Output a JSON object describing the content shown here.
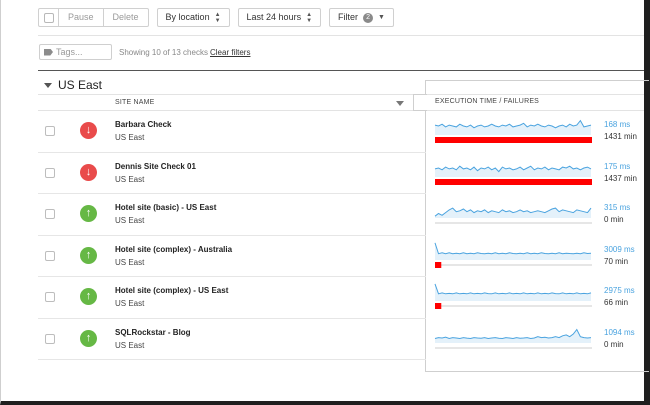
{
  "toolbar": {
    "pause_label": "Pause",
    "delete_label": "Delete",
    "location_label": "By location",
    "time_label": "Last 24 hours",
    "filter_label": "Filter",
    "filter_count": "2"
  },
  "filters": {
    "tags_placeholder": "Tags...",
    "showing_text": "Showing 10 of 13 checks",
    "clear_label": "Clear filters"
  },
  "group": {
    "title": "US East"
  },
  "columns": {
    "site": "SITE NAME",
    "exec": "EXECUTION TIME / FAILURES"
  },
  "colors": {
    "down": "#e94b4b",
    "up": "#66b845",
    "spark": "#4aa3df",
    "fail": "#ff0000"
  },
  "rows": [
    {
      "name": "Barbara Check",
      "region": "US East",
      "status": "down",
      "ms": "168 ms",
      "min": "1431 min",
      "spark": [
        0.55,
        0.5,
        0.6,
        0.45,
        0.55,
        0.5,
        0.45,
        0.6,
        0.5,
        0.45,
        0.55,
        0.4,
        0.5,
        0.55,
        0.45,
        0.5,
        0.6,
        0.5,
        0.45,
        0.55,
        0.5,
        0.6,
        0.45,
        0.5,
        0.55,
        0.65,
        0.45,
        0.55,
        0.5,
        0.6,
        0.5,
        0.45,
        0.55,
        0.5,
        0.4,
        0.5,
        0.55,
        0.45,
        0.6,
        0.5,
        0.55,
        0.8,
        0.45,
        0.5,
        0.55
      ],
      "failure": 1.0
    },
    {
      "name": "Dennis Site Check 01",
      "region": "US East",
      "status": "down",
      "ms": "175 ms",
      "min": "1437 min",
      "spark": [
        0.45,
        0.5,
        0.4,
        0.55,
        0.45,
        0.5,
        0.4,
        0.6,
        0.45,
        0.5,
        0.4,
        0.55,
        0.35,
        0.5,
        0.45,
        0.55,
        0.4,
        0.5,
        0.3,
        0.55,
        0.45,
        0.5,
        0.4,
        0.45,
        0.55,
        0.4,
        0.5,
        0.6,
        0.4,
        0.5,
        0.45,
        0.55,
        0.4,
        0.5,
        0.45,
        0.4,
        0.55,
        0.5,
        0.6,
        0.45,
        0.5,
        0.4,
        0.5,
        0.55,
        0.45
      ],
      "failure": 1.0
    },
    {
      "name": "Hotel site (basic) - US East",
      "region": "US East",
      "status": "up",
      "ms": "315 ms",
      "min": "0 min",
      "spark": [
        0.1,
        0.25,
        0.15,
        0.3,
        0.45,
        0.55,
        0.35,
        0.4,
        0.5,
        0.35,
        0.45,
        0.3,
        0.4,
        0.35,
        0.45,
        0.3,
        0.4,
        0.35,
        0.3,
        0.45,
        0.35,
        0.4,
        0.3,
        0.35,
        0.45,
        0.35,
        0.4,
        0.3,
        0.35,
        0.4,
        0.35,
        0.3,
        0.4,
        0.5,
        0.55,
        0.35,
        0.45,
        0.4,
        0.35,
        0.3,
        0.45,
        0.4,
        0.35,
        0.3,
        0.55
      ],
      "failure": 0.0
    },
    {
      "name": "Hotel site (complex) - Australia",
      "region": "US East",
      "status": "up",
      "ms": "3009 ms",
      "min": "70 min",
      "spark": [
        0.95,
        0.35,
        0.4,
        0.35,
        0.4,
        0.35,
        0.38,
        0.35,
        0.4,
        0.35,
        0.38,
        0.35,
        0.4,
        0.36,
        0.35,
        0.38,
        0.35,
        0.4,
        0.35,
        0.38,
        0.35,
        0.4,
        0.36,
        0.35,
        0.38,
        0.35,
        0.4,
        0.35,
        0.38,
        0.35,
        0.4,
        0.36,
        0.35,
        0.38,
        0.35,
        0.4,
        0.35,
        0.38,
        0.36,
        0.35,
        0.38,
        0.35,
        0.4,
        0.36,
        0.38
      ],
      "failure": 0.04
    },
    {
      "name": "Hotel site (complex) - US East",
      "region": "US East",
      "status": "up",
      "ms": "2975 ms",
      "min": "66 min",
      "spark": [
        0.95,
        0.4,
        0.45,
        0.4,
        0.42,
        0.4,
        0.45,
        0.4,
        0.42,
        0.4,
        0.45,
        0.4,
        0.42,
        0.4,
        0.45,
        0.41,
        0.4,
        0.45,
        0.4,
        0.42,
        0.4,
        0.45,
        0.4,
        0.42,
        0.4,
        0.45,
        0.4,
        0.42,
        0.4,
        0.45,
        0.4,
        0.42,
        0.4,
        0.45,
        0.41,
        0.4,
        0.45,
        0.4,
        0.42,
        0.4,
        0.45,
        0.4,
        0.42,
        0.4,
        0.45
      ],
      "failure": 0.04
    },
    {
      "name": "SQLRockstar - Blog",
      "region": "US East",
      "status": "up",
      "ms": "1094 ms",
      "min": "0 min",
      "spark": [
        0.25,
        0.3,
        0.28,
        0.32,
        0.25,
        0.3,
        0.28,
        0.25,
        0.3,
        0.27,
        0.25,
        0.3,
        0.28,
        0.26,
        0.3,
        0.25,
        0.28,
        0.3,
        0.26,
        0.25,
        0.3,
        0.28,
        0.25,
        0.3,
        0.26,
        0.28,
        0.3,
        0.25,
        0.28,
        0.35,
        0.3,
        0.32,
        0.28,
        0.3,
        0.35,
        0.3,
        0.4,
        0.45,
        0.35,
        0.5,
        0.75,
        0.35,
        0.3,
        0.28,
        0.3
      ],
      "failure": 0.0
    }
  ]
}
